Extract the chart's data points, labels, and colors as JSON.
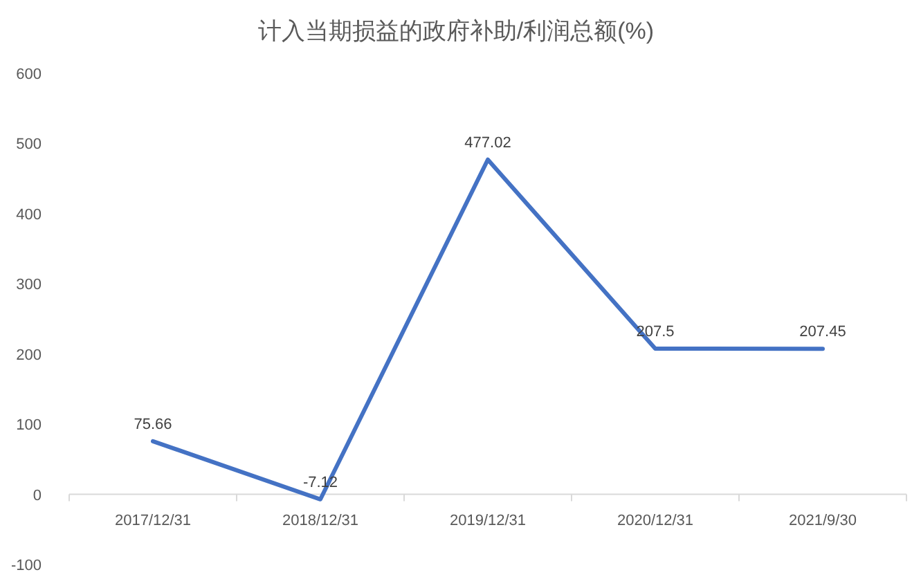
{
  "chart_data": {
    "type": "line",
    "title": "计入当期损益的政府补助/利润总额(%)",
    "categories": [
      "2017/12/31",
      "2018/12/31",
      "2019/12/31",
      "2020/12/31",
      "2021/9/30"
    ],
    "values": [
      75.66,
      -7.12,
      477.02,
      207.5,
      207.45
    ],
    "color": "#4472c4",
    "ylim": [
      -100,
      600
    ],
    "yticks": [
      -100,
      0,
      100,
      200,
      300,
      400,
      500,
      600
    ],
    "data_labels": true,
    "grid": false,
    "legend": false
  }
}
